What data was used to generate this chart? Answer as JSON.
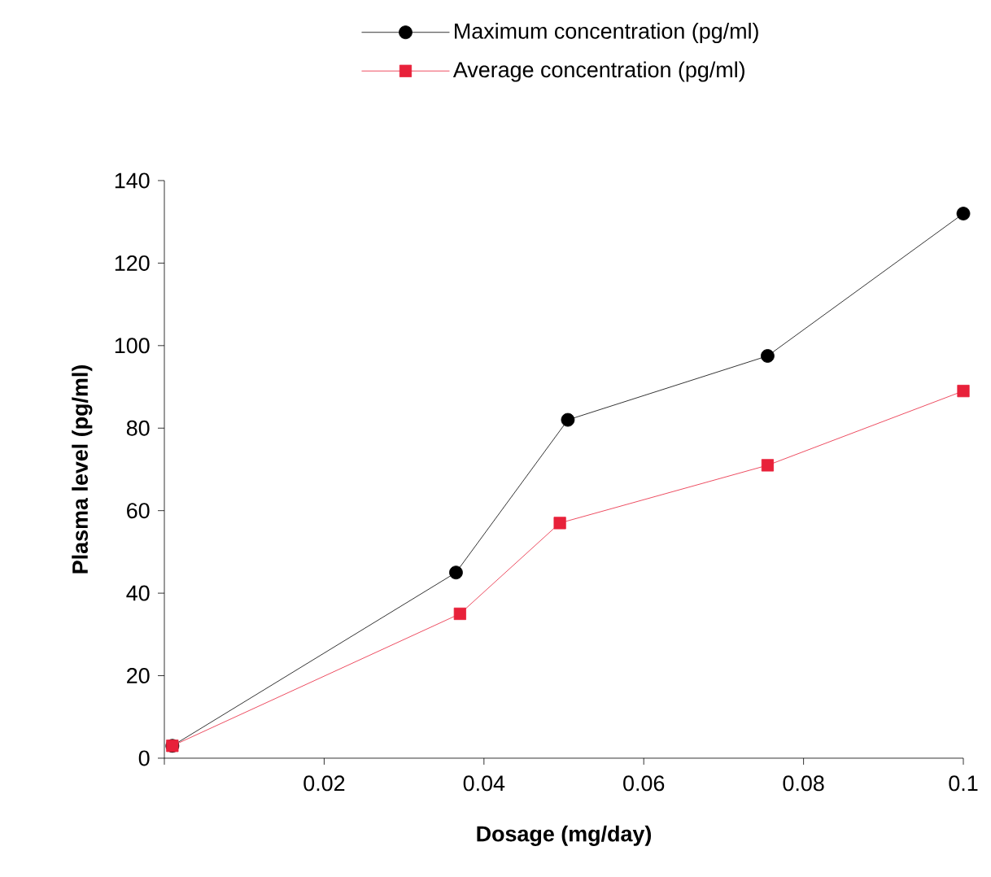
{
  "chart_data": {
    "type": "line",
    "xlabel": "Dosage (mg/day)",
    "ylabel": "Plasma level (pg/ml)",
    "xlim": [
      0,
      0.1
    ],
    "xticks": [
      {
        "value": 0,
        "label": null
      },
      0.02,
      0.04,
      0.06,
      0.08,
      {
        "value": 0.1,
        "label": "0.1"
      }
    ],
    "ylim": [
      0,
      140
    ],
    "yticks": [
      0,
      20,
      40,
      60,
      80,
      100,
      120,
      140
    ],
    "grid": false,
    "legend": "top",
    "line_style": "solid",
    "series": [
      {
        "name": "Maximum concentration (pg/ml)",
        "color": "#000000",
        "marker": "circle",
        "x": [
          0.001,
          0.0365,
          0.0505,
          0.0755,
          0.1
        ],
        "values": [
          3,
          45,
          82,
          97.5,
          132
        ]
      },
      {
        "name": "Average concentration (pg/ml)",
        "color": "#e8213a",
        "marker": "square",
        "x": [
          0.001,
          0.037,
          0.0495,
          0.0755,
          0.1
        ],
        "values": [
          3,
          35,
          57,
          71,
          89
        ]
      }
    ]
  }
}
